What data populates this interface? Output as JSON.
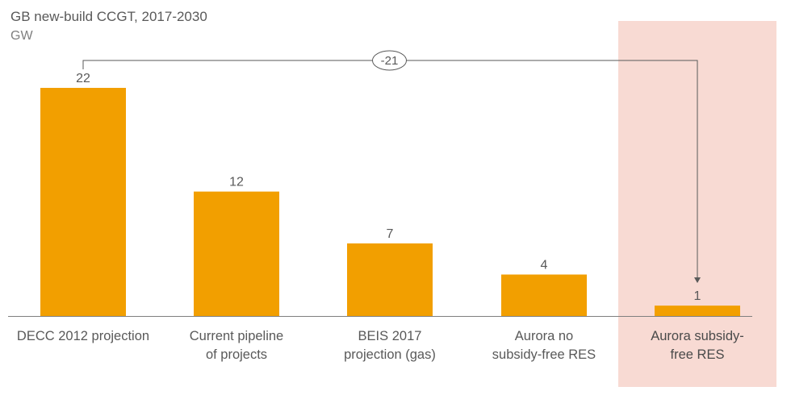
{
  "chart_data": {
    "type": "bar",
    "title": "GB new-build CCGT, 2017-2030",
    "unit": "GW",
    "categories": [
      [
        "DECC 2012 projection"
      ],
      [
        "Current pipeline",
        "of projects"
      ],
      [
        "BEIS 2017",
        "projection (gas)"
      ],
      [
        "Aurora no",
        "subsidy-free RES"
      ],
      [
        "Aurora subsidy-",
        "free RES"
      ]
    ],
    "values": [
      22,
      12,
      7,
      4,
      1
    ],
    "ylim": [
      0,
      22
    ],
    "highlighted_index": 4,
    "annotation": {
      "label": "-21",
      "from_index": 0,
      "to_index": 4
    },
    "colors": {
      "bar": "#F29F00",
      "highlight_background": "#F8DAD3",
      "axis": "#7f7f7f",
      "connector": "#595959"
    }
  }
}
